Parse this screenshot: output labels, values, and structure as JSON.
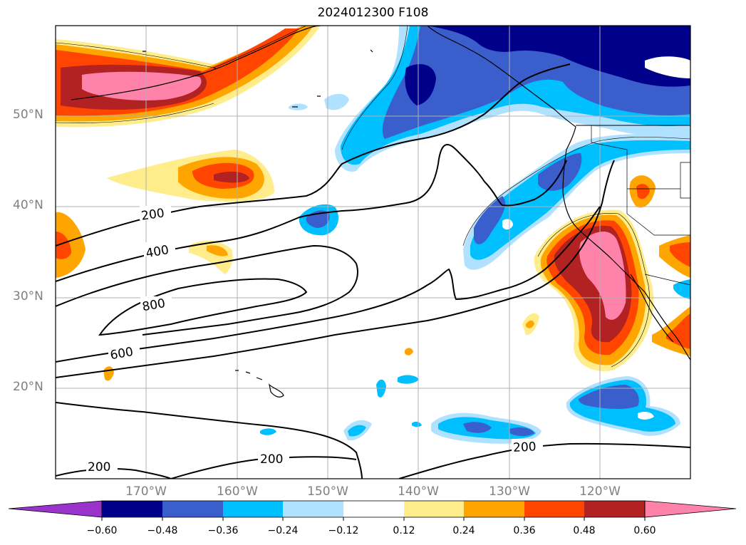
{
  "title": "2024012300 F108",
  "lat_labels": [
    "50°N",
    "40°N",
    "30°N",
    "20°N"
  ],
  "lon_labels": [
    "170°W",
    "160°W",
    "150°W",
    "140°W",
    "130°W",
    "120°W"
  ],
  "contour_labels": [
    "200",
    "400",
    "800",
    "600",
    "200",
    "200",
    "200"
  ],
  "colorbar": {
    "ticks": [
      "−0.60",
      "−0.48",
      "−0.36",
      "−0.24",
      "−0.12",
      "0.12",
      "0.24",
      "0.36",
      "0.48",
      "0.60"
    ],
    "colors": [
      "#9933cc",
      "#00008b",
      "#3a5fcd",
      "#00bfff",
      "#b0e2ff",
      "#ffffff",
      "#ffec8b",
      "#ffa500",
      "#ff4500",
      "#b22222",
      "#ff82ab"
    ]
  }
}
